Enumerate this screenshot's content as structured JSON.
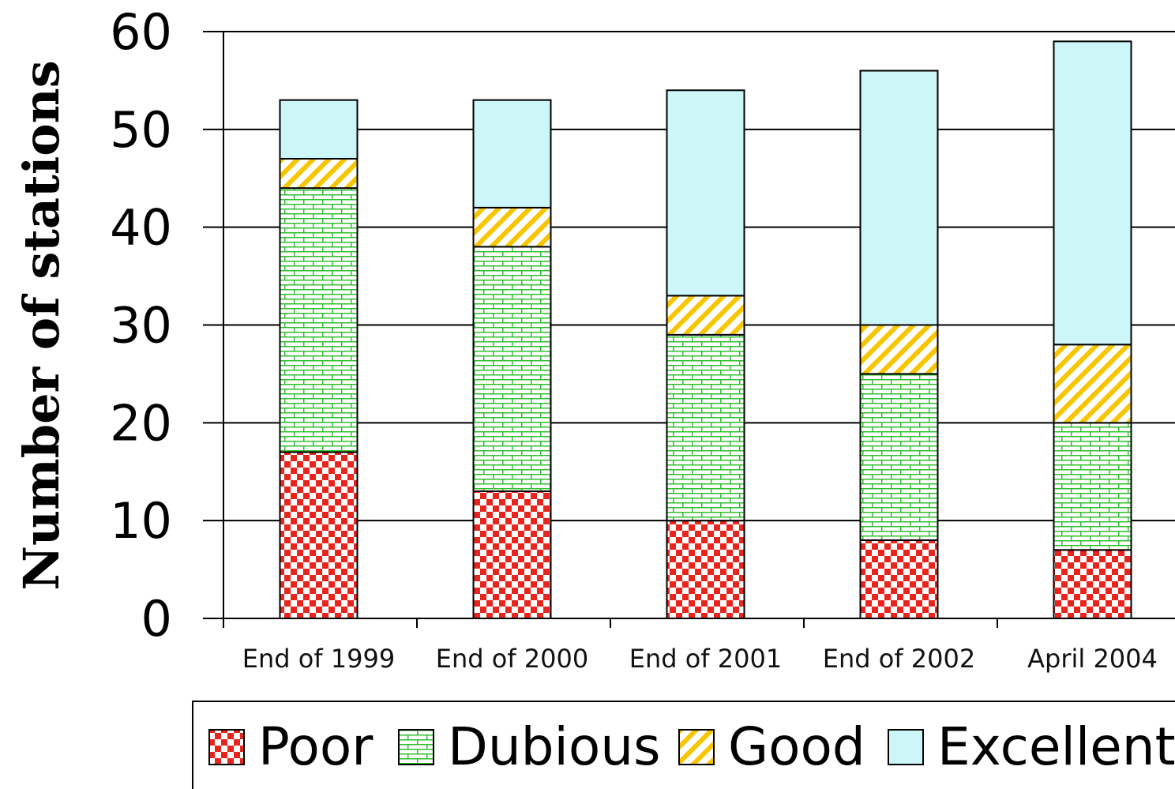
{
  "chart_data": {
    "type": "bar",
    "stacked": true,
    "title": "",
    "xlabel": "",
    "ylabel": "Number of stations",
    "ylim": [
      0,
      60
    ],
    "yticks": [
      0,
      10,
      20,
      30,
      40,
      50,
      60
    ],
    "grid": true,
    "legend_position": "bottom",
    "categories": [
      "End of 1999",
      "End of 2000",
      "End of 2001",
      "End of 2002",
      "April 2004"
    ],
    "series": [
      {
        "name": "Poor",
        "values": [
          17,
          13,
          10,
          8,
          7
        ],
        "color": "#e8251c",
        "pattern": "checker"
      },
      {
        "name": "Dubious",
        "values": [
          27,
          25,
          19,
          17,
          13
        ],
        "color": "#2fbf2f",
        "pattern": "brick"
      },
      {
        "name": "Good",
        "values": [
          3,
          4,
          4,
          5,
          8
        ],
        "color": "#f7c600",
        "pattern": "diagonal"
      },
      {
        "name": "Excellent",
        "values": [
          6,
          11,
          21,
          26,
          31
        ],
        "color": "#ccf6f8",
        "pattern": "solid"
      }
    ]
  }
}
